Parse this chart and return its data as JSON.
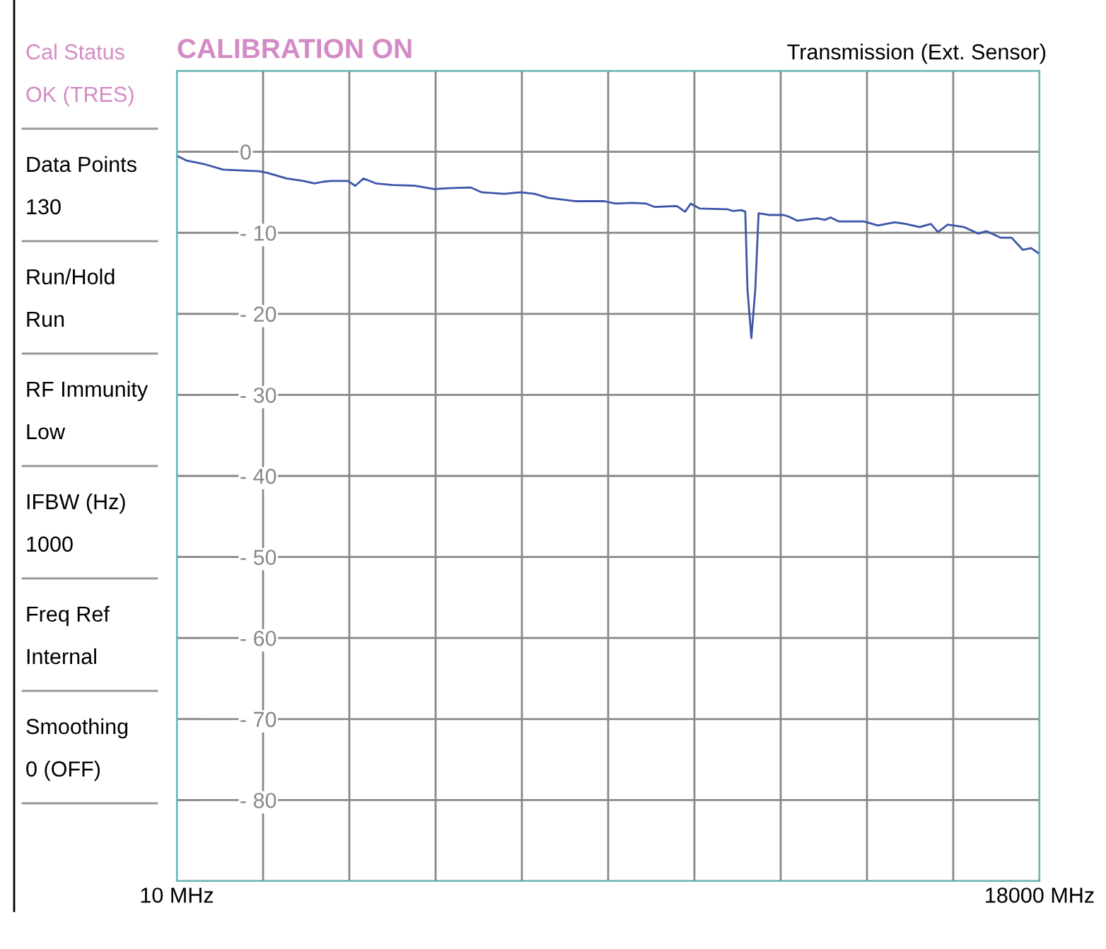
{
  "chart_data": {
    "type": "line",
    "title": "CALIBRATION ON",
    "subtitle": "Transmission (Ext. Sensor)",
    "annotations": [
      "Cal Status",
      "OK (TRES)",
      "Data Points",
      "130",
      "Run/Hold",
      "Run",
      "RF Immunity",
      "Low",
      "IFBW (Hz)",
      "1000",
      "Freq Ref",
      "Internal",
      "Smoothing",
      "0 (OFF)"
    ],
    "series": [
      {
        "color": "#3d55a8",
        "x": [
          10,
          219,
          568,
          975,
          1720,
          1894,
          2301,
          2650,
          2882,
          3056,
          3230,
          3579,
          3730,
          3904,
          4160,
          4508,
          4973,
          5380,
          5671,
          6136,
          6368,
          6833,
          7181,
          7472,
          7762,
          8343,
          8924,
          9157,
          9506,
          9796,
          9971,
          10436,
          10610,
          10726,
          10911,
          11492,
          11608,
          11782,
          11864,
          11910,
          11991,
          12073,
          12142,
          12363,
          12654,
          12770,
          12944,
          13351,
          13525,
          13641,
          13816,
          14339,
          14629,
          14978,
          15210,
          15501,
          15733,
          15884,
          16082,
          16430,
          16721,
          16895,
          17186,
          17418,
          17650,
          17825,
          18000
        ],
        "values": [
          -0.5,
          -1.1,
          -1.5,
          -2.2,
          -2.4,
          -2.6,
          -3.3,
          -3.6,
          -3.9,
          -3.7,
          -3.6,
          -3.6,
          -4.2,
          -3.3,
          -3.9,
          -4.1,
          -4.2,
          -4.6,
          -4.5,
          -4.4,
          -5.0,
          -5.2,
          -5.0,
          -5.2,
          -5.7,
          -6.1,
          -6.1,
          -6.4,
          -6.3,
          -6.4,
          -6.8,
          -6.7,
          -7.4,
          -6.4,
          -7.0,
          -7.1,
          -7.3,
          -7.2,
          -7.4,
          -17.0,
          -23.0,
          -17.0,
          -7.6,
          -7.8,
          -7.8,
          -8.0,
          -8.5,
          -8.2,
          -8.4,
          -8.1,
          -8.6,
          -8.6,
          -9.1,
          -8.7,
          -8.9,
          -9.3,
          -8.9,
          -9.9,
          -9.0,
          -9.3,
          -10.1,
          -9.8,
          -10.6,
          -10.6,
          -12.1,
          -11.9,
          -12.6
        ]
      }
    ],
    "xlim": [
      10,
      18000
    ],
    "xticks": [
      {
        "value": 10,
        "label": "10 MHz"
      },
      {
        "value": 1809,
        "label": null
      },
      {
        "value": 3608,
        "label": null
      },
      {
        "value": 5407,
        "label": null
      },
      {
        "value": 7206,
        "label": null
      },
      {
        "value": 9005,
        "label": null
      },
      {
        "value": 10804,
        "label": null
      },
      {
        "value": 12603,
        "label": null
      },
      {
        "value": 14402,
        "label": null
      },
      {
        "value": 16201,
        "label": null
      },
      {
        "value": 18000,
        "label": "18000 MHz"
      }
    ],
    "ylim": [
      -90,
      10
    ],
    "yticks": [
      0,
      {
        "value": -10,
        "label": "- 10"
      },
      {
        "value": -20,
        "label": "- 20"
      },
      {
        "value": -30,
        "label": "- 30"
      },
      {
        "value": -40,
        "label": "- 40"
      },
      {
        "value": -50,
        "label": "- 50"
      },
      {
        "value": -60,
        "label": "- 60"
      },
      {
        "value": -70,
        "label": "- 70"
      },
      {
        "value": -80,
        "label": "- 80"
      },
      {
        "value": -90,
        "label": null
      },
      {
        "value": 10,
        "label": null
      }
    ],
    "grid": true,
    "legend": false
  }
}
